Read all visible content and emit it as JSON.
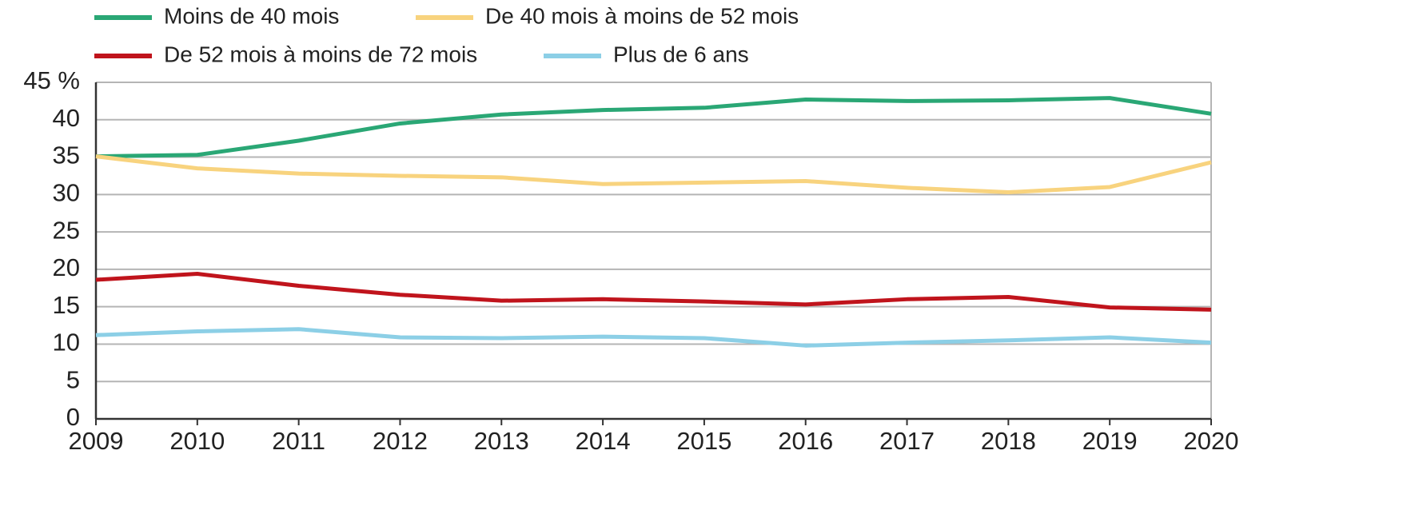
{
  "chart_data": {
    "type": "line",
    "x": [
      2009,
      2010,
      2011,
      2012,
      2013,
      2014,
      2015,
      2016,
      2017,
      2018,
      2019,
      2020
    ],
    "xlim": [
      2009,
      2020
    ],
    "xticks": [
      2009,
      2010,
      2011,
      2012,
      2013,
      2014,
      2015,
      2016,
      2017,
      2018,
      2019,
      2020
    ],
    "ylim": [
      0,
      45
    ],
    "yticks": [
      0,
      5,
      10,
      15,
      20,
      25,
      30,
      35,
      40,
      {
        "value": 45,
        "label": "45 %"
      }
    ],
    "grid": true,
    "legend": "top",
    "series": [
      {
        "name": "Moins de 40 mois",
        "color": "#2aa775",
        "values": [
          35.1,
          35.3,
          37.2,
          39.5,
          40.7,
          41.3,
          41.6,
          42.7,
          42.5,
          42.6,
          42.9,
          40.8
        ]
      },
      {
        "name": "De 40 mois à moins de 52 mois",
        "color": "#f8d37e",
        "values": [
          35.1,
          33.5,
          32.8,
          32.5,
          32.3,
          31.4,
          31.6,
          31.8,
          30.9,
          30.3,
          31.0,
          34.3
        ]
      },
      {
        "name": "De 52 mois à moins de 72 mois",
        "color": "#c0141c",
        "values": [
          18.6,
          19.4,
          17.8,
          16.6,
          15.8,
          16.0,
          15.7,
          15.3,
          16.0,
          16.3,
          14.9,
          14.6
        ]
      },
      {
        "name": "Plus de 6 ans",
        "color": "#8ccfe6",
        "values": [
          11.2,
          11.7,
          12.0,
          10.9,
          10.8,
          11.0,
          10.8,
          9.8,
          10.2,
          10.5,
          10.9,
          10.2
        ]
      }
    ]
  }
}
